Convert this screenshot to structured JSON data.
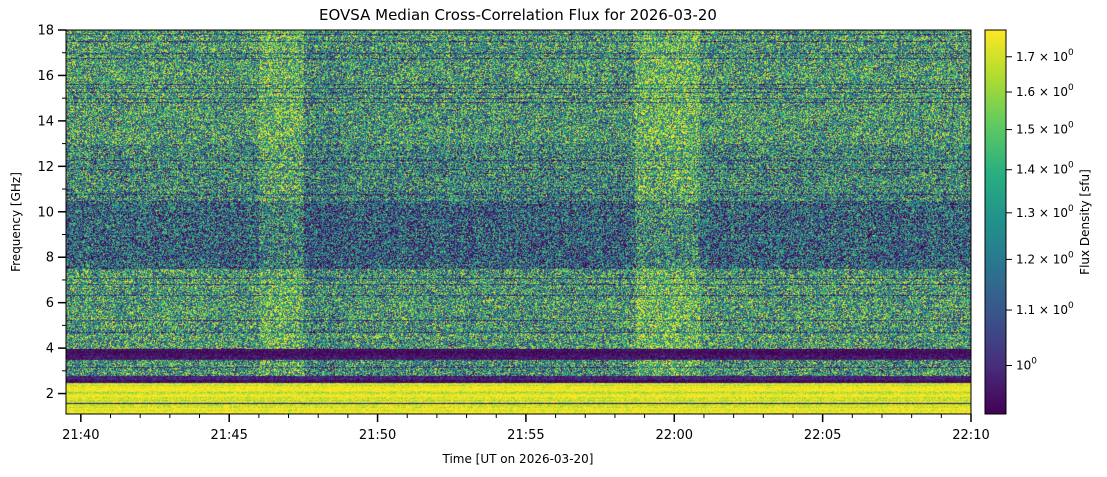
{
  "chart_data": {
    "type": "heatmap",
    "title": "EOVSA Median Cross-Correlation Flux for 2026-03-20",
    "xlabel": "Time [UT on 2026-03-20]",
    "ylabel": "Frequency [GHz]",
    "colorbar_label": "Flux Density [sfu]",
    "colormap": "viridis",
    "colorbar_scale": "log",
    "xlim": [
      "21:39:30",
      "22:10:00"
    ],
    "ylim": [
      1.1,
      18.0
    ],
    "clim": [
      0.92,
      1.78
    ],
    "x_ticks": [
      "21:40",
      "21:45",
      "21:50",
      "21:55",
      "22:00",
      "22:05",
      "22:10"
    ],
    "y_ticks": [
      "2",
      "4",
      "6",
      "8",
      "10",
      "12",
      "14",
      "16",
      "18"
    ],
    "colorbar_ticks": [
      {
        "value": 1.0,
        "base": "10",
        "exp": "0",
        "coef": ""
      },
      {
        "value": 1.1,
        "base": "10",
        "exp": "0",
        "coef": "1.1 × "
      },
      {
        "value": 1.2,
        "base": "10",
        "exp": "0",
        "coef": "1.2 × "
      },
      {
        "value": 1.3,
        "base": "10",
        "exp": "0",
        "coef": "1.3 × "
      },
      {
        "value": 1.4,
        "base": "10",
        "exp": "0",
        "coef": "1.4 × "
      },
      {
        "value": 1.5,
        "base": "10",
        "exp": "0",
        "coef": "1.5 × "
      },
      {
        "value": 1.6,
        "base": "10",
        "exp": "0",
        "coef": "1.6 × "
      },
      {
        "value": 1.7,
        "base": "10",
        "exp": "0",
        "coef": "1.7 × "
      }
    ],
    "time_bands": [
      {
        "start": "21:39:30",
        "end": "21:46:00",
        "level": 0.5
      },
      {
        "start": "21:46:00",
        "end": "21:47:30",
        "level": 0.72
      },
      {
        "start": "21:47:30",
        "end": "21:48:50",
        "level": 0.38
      },
      {
        "start": "21:48:50",
        "end": "21:58:40",
        "level": 0.45
      },
      {
        "start": "21:58:40",
        "end": "22:00:50",
        "level": 0.78
      },
      {
        "start": "22:00:50",
        "end": "22:10:00",
        "level": 0.48
      }
    ],
    "freq_bands": [
      {
        "from": 1.1,
        "to": 2.5,
        "level": 0.95
      },
      {
        "from": 2.5,
        "to": 2.8,
        "level": 0.05
      },
      {
        "from": 2.8,
        "to": 3.5,
        "level": 0.55
      },
      {
        "from": 3.5,
        "to": 4.0,
        "level": 0.04
      },
      {
        "from": 4.0,
        "to": 7.5,
        "level": 0.6
      },
      {
        "from": 7.5,
        "to": 10.5,
        "level": 0.18
      },
      {
        "from": 10.5,
        "to": 13.0,
        "level": 0.45
      },
      {
        "from": 13.0,
        "to": 18.0,
        "level": 0.62
      }
    ]
  }
}
